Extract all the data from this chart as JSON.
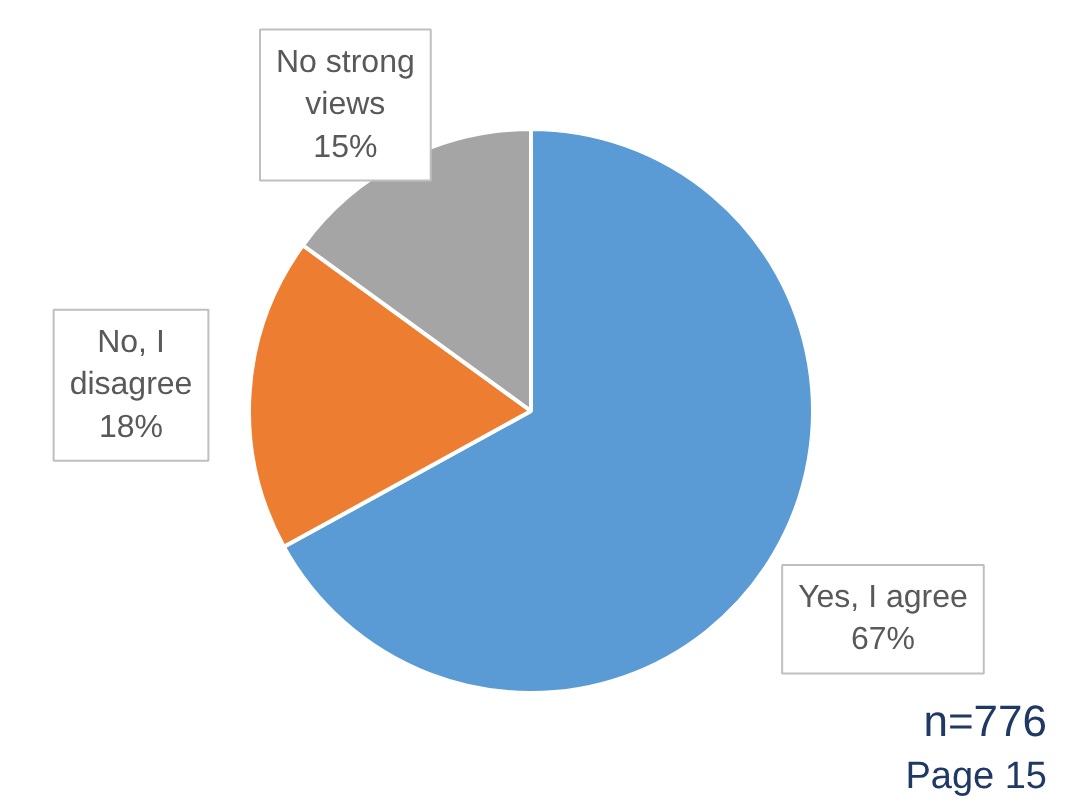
{
  "chart_data": {
    "type": "pie",
    "categories": [
      "Yes, I agree",
      "No, I disagree",
      "No strong views"
    ],
    "values": [
      67,
      18,
      15
    ],
    "colors": [
      "#5b9bd5",
      "#ed7d31",
      "#a5a5a5"
    ],
    "value_labels": [
      "67%",
      "18%",
      "15%"
    ],
    "annotations": [
      "n=776",
      "Page 15"
    ]
  }
}
